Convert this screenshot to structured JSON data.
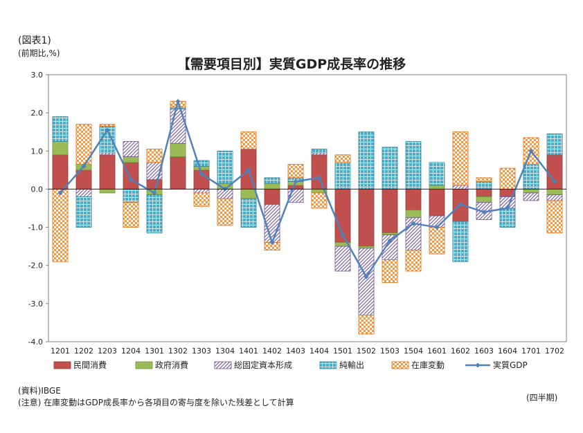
{
  "figure_label": "(図表1)",
  "unit_label": "(前期比,%)",
  "source": "(資料)IBGE",
  "note": "(注意) 在庫変動はGDP成長率から各項目の寄与度を除いた残差として計算",
  "period_label": "(四半期)",
  "chart_data": {
    "type": "bar",
    "stacked": true,
    "title": "【需要項目別】実質GDP成長率の推移",
    "ylabel": "(前期比,%)",
    "xlabel": "(四半期)",
    "ylim": [
      -4.0,
      3.0
    ],
    "yticks": [
      "3.0",
      "2.0",
      "1.0",
      "0.0",
      "-1.0",
      "-2.0",
      "-3.0",
      "-4.0"
    ],
    "grid": false,
    "legend_position": "bottom",
    "categories": [
      "1201",
      "1202",
      "1203",
      "1204",
      "1301",
      "1302",
      "1303",
      "1304",
      "1401",
      "1402",
      "1403",
      "1404",
      "1501",
      "1502",
      "1503",
      "1504",
      "1601",
      "1602",
      "1603",
      "1604",
      "1701",
      "1702"
    ],
    "series": [
      {
        "name": "民間消費",
        "color": "#c0504d",
        "pattern": "solid",
        "values": [
          0.9,
          0.5,
          0.9,
          0.7,
          0.25,
          0.85,
          0.5,
          0.0,
          1.05,
          -0.4,
          0.1,
          0.9,
          -1.4,
          -1.5,
          -1.15,
          -0.55,
          -0.7,
          -0.85,
          -0.2,
          -0.2,
          0.0,
          0.9
        ]
      },
      {
        "name": "政府消費",
        "color": "#9bbb59",
        "pattern": "solid",
        "values": [
          0.35,
          0.15,
          -0.1,
          0.15,
          -0.15,
          0.35,
          0.1,
          0.15,
          -0.25,
          0.15,
          0.1,
          -0.1,
          -0.1,
          -0.05,
          -0.05,
          -0.2,
          0.1,
          0.0,
          -0.15,
          0.0,
          -0.1,
          -0.15
        ]
      },
      {
        "name": "総固定資本形成",
        "color": "#8064a2",
        "pattern": "diagonal",
        "values": [
          0.0,
          -0.2,
          0.05,
          0.4,
          0.45,
          0.9,
          -0.1,
          -0.25,
          0.0,
          -1.0,
          -0.35,
          0.05,
          -0.65,
          -1.75,
          -0.65,
          -0.85,
          -0.3,
          0.1,
          -0.45,
          -0.3,
          -0.2,
          -0.15
        ]
      },
      {
        "name": "純輸出",
        "color": "#4bacc6",
        "pattern": "grid",
        "values": [
          0.65,
          -0.8,
          0.7,
          -0.35,
          -1.0,
          0.05,
          0.15,
          0.85,
          -0.75,
          0.15,
          0.1,
          0.1,
          0.7,
          1.5,
          1.1,
          1.25,
          0.6,
          -1.05,
          0.2,
          -0.5,
          0.65,
          0.55
        ]
      },
      {
        "name": "在庫変動",
        "color": "#f79646",
        "pattern": "checker",
        "values": [
          -1.9,
          1.05,
          0.05,
          -0.65,
          0.35,
          0.15,
          -0.35,
          -0.7,
          0.45,
          -0.2,
          0.35,
          -0.4,
          0.2,
          -0.5,
          -0.6,
          -0.55,
          -0.7,
          1.4,
          0.1,
          0.55,
          0.7,
          -0.85
        ]
      },
      {
        "name": "実質GDP",
        "color": "#4f81bd",
        "type": "line",
        "marker": "diamond",
        "values": [
          -0.1,
          0.6,
          1.55,
          0.25,
          -0.1,
          2.3,
          0.4,
          0.0,
          0.5,
          -1.4,
          0.2,
          0.3,
          -1.2,
          -2.3,
          -1.35,
          -0.9,
          -1.0,
          -0.4,
          -0.6,
          -0.5,
          1.0,
          0.2
        ]
      }
    ]
  }
}
